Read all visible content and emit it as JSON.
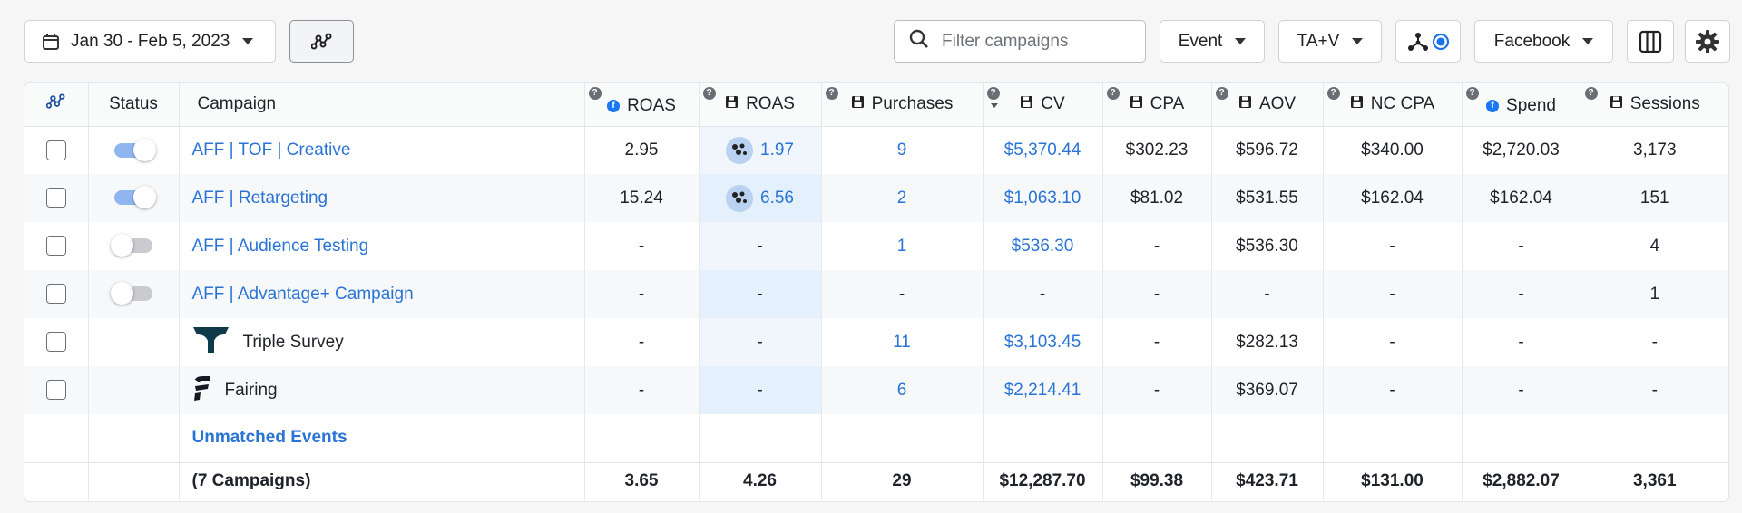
{
  "toolbar": {
    "date_range": "Jan 30 - Feb 5, 2023",
    "search_placeholder": "Filter campaigns",
    "event_label": "Event",
    "attribution_label": "TA+V",
    "platform_label": "Facebook",
    "icons": [
      "calendar-icon",
      "caret-down-icon",
      "pixel-icon",
      "search-icon",
      "graph-node-icon",
      "columns-icon",
      "gear-icon"
    ]
  },
  "table": {
    "headers": {
      "status": "Status",
      "campaign": "Campaign",
      "fb_roas": "ROAS",
      "pixel_roas": "ROAS",
      "purchases": "Purchases",
      "cv": "CV",
      "cpa": "CPA",
      "aov": "AOV",
      "nc_cpa": "NC CPA",
      "spend": "Spend",
      "sessions": "Sessions"
    },
    "rows": [
      {
        "name": "AFF | TOF | Creative",
        "status": "on",
        "fb_roas": "2.95",
        "pixel_roas": "1.97",
        "purchases": "9",
        "cv": "$5,370.44",
        "cpa": "$302.23",
        "aov": "$596.72",
        "nc_cpa": "$340.00",
        "spend": "$2,720.03",
        "sessions": "3,173"
      },
      {
        "name": "AFF | Retargeting",
        "status": "on",
        "fb_roas": "15.24",
        "pixel_roas": "6.56",
        "purchases": "2",
        "cv": "$1,063.10",
        "cpa": "$81.02",
        "aov": "$531.55",
        "nc_cpa": "$162.04",
        "spend": "$162.04",
        "sessions": "151"
      },
      {
        "name": "AFF | Audience Testing",
        "status": "off",
        "fb_roas": "-",
        "pixel_roas": "-",
        "purchases": "1",
        "cv": "$536.30",
        "cpa": "-",
        "aov": "$536.30",
        "nc_cpa": "-",
        "spend": "-",
        "sessions": "4"
      },
      {
        "name": "AFF | Advantage+ Campaign",
        "status": "off",
        "fb_roas": "-",
        "pixel_roas": "-",
        "purchases": "-",
        "cv": "-",
        "cpa": "-",
        "aov": "-",
        "nc_cpa": "-",
        "spend": "-",
        "sessions": "1"
      },
      {
        "name": "Triple Survey",
        "status": "",
        "fb_roas": "-",
        "pixel_roas": "-",
        "purchases": "11",
        "cv": "$3,103.45",
        "cpa": "-",
        "aov": "$282.13",
        "nc_cpa": "-",
        "spend": "-",
        "sessions": "-"
      },
      {
        "name": "Fairing",
        "status": "",
        "fb_roas": "-",
        "pixel_roas": "-",
        "purchases": "6",
        "cv": "$2,214.41",
        "cpa": "-",
        "aov": "$369.07",
        "nc_cpa": "-",
        "spend": "-",
        "sessions": "-"
      }
    ],
    "unmatched_label": "Unmatched Events",
    "totals": {
      "label": "(7 Campaigns)",
      "fb_roas": "3.65",
      "pixel_roas": "4.26",
      "purchases": "29",
      "cv": "$12,287.70",
      "cpa": "$99.38",
      "aov": "$423.71",
      "nc_cpa": "$131.00",
      "spend": "$2,882.07",
      "sessions": "3,361"
    }
  },
  "colors": {
    "link": "#2a74d6",
    "highlight_column": "#e4f0fb",
    "toggle_on": "#90b6f0",
    "facebook": "#1877f2"
  }
}
